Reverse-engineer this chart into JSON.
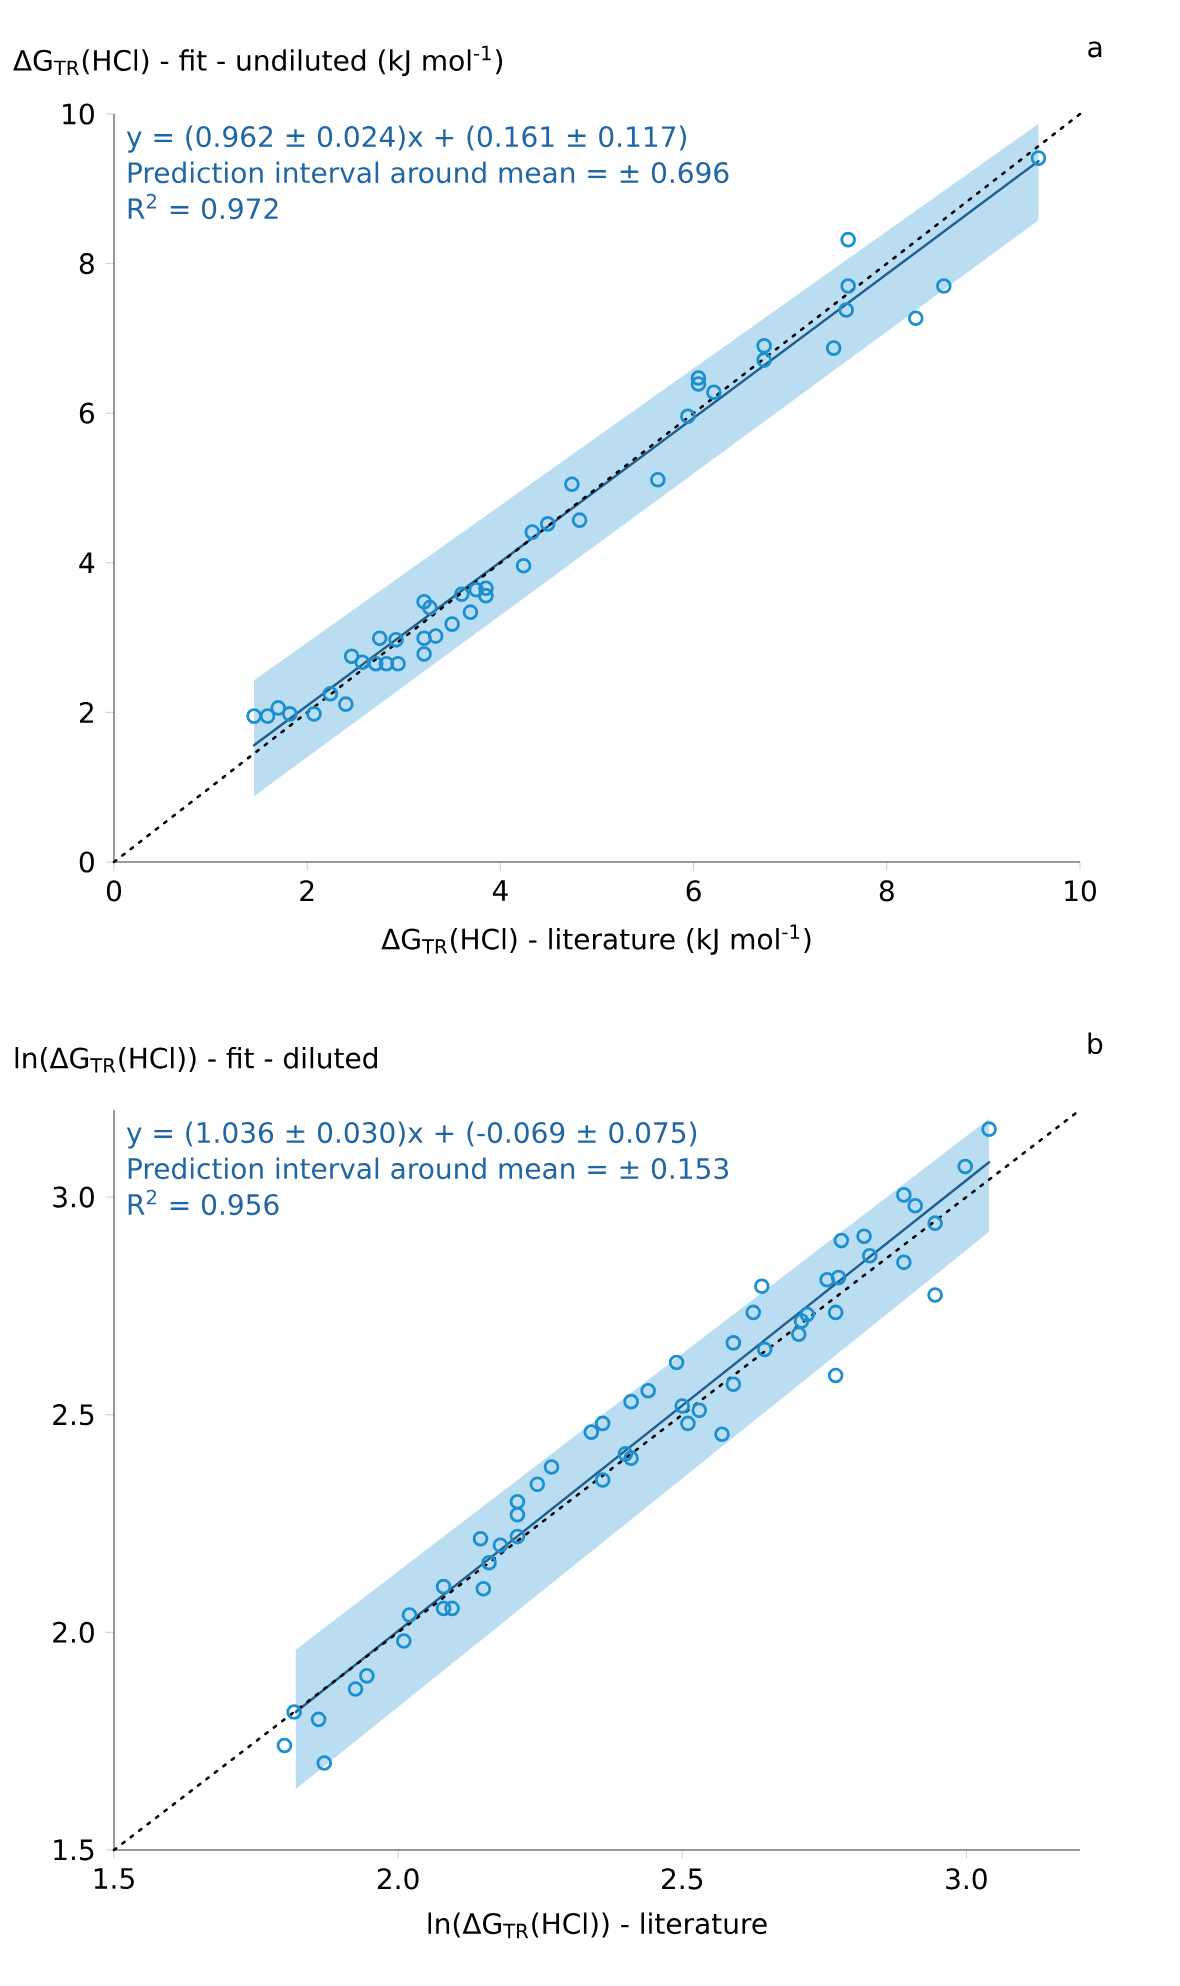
{
  "chart_data": [
    {
      "type": "scatter",
      "ylabel": "ΔG$_{TR}$(HCl) - fit - undiluted (kJ mol$^{-1}$)",
      "xlabel": "ΔG$_{TR}$(HCl) - literature (kJ mol$^{-1}$)",
      "xlim": [
        0,
        10
      ],
      "ylim": [
        0,
        10
      ],
      "xticks": [
        0,
        2,
        4,
        6,
        8,
        10
      ],
      "yticks": [
        0,
        2,
        4,
        6,
        8,
        10
      ],
      "annotations": [
        "y = (0.962 ± 0.024)x + (0.161 ± 0.117)",
        "Prediction interval around mean = ± 0.696",
        "R$^{2}$ = 0.972",
        "a"
      ],
      "series": [
        {
          "marker": "circle",
          "color": "#1b8fcf",
          "x": [
            1.45,
            1.59,
            1.7,
            1.82,
            2.07,
            2.24,
            2.4,
            2.46,
            2.57,
            2.71,
            2.75,
            2.82,
            2.94,
            2.92,
            3.21,
            3.27,
            3.21,
            3.21,
            3.33,
            3.5,
            3.6,
            3.69,
            3.75,
            3.85,
            3.85,
            4.24,
            4.33,
            4.49,
            4.74,
            4.82,
            5.63,
            5.94,
            6.05,
            6.05,
            6.21,
            6.73,
            6.73,
            7.6,
            7.45,
            7.58,
            7.6,
            8.3,
            8.59,
            9.57
          ],
          "values": [
            1.95,
            1.95,
            2.06,
            1.98,
            1.98,
            2.25,
            2.11,
            2.75,
            2.67,
            2.65,
            2.99,
            2.65,
            2.65,
            2.97,
            3.48,
            3.4,
            2.99,
            2.78,
            3.02,
            3.18,
            3.58,
            3.34,
            3.64,
            3.66,
            3.56,
            3.96,
            4.41,
            4.52,
            5.05,
            4.57,
            5.11,
            5.96,
            6.47,
            6.39,
            6.28,
            6.9,
            6.71,
            8.32,
            6.87,
            7.38,
            7.7,
            7.27,
            7.7,
            9.41
          ]
        },
        {
          "type": "line",
          "color": "#1f5f8f",
          "x": [
            1.45,
            9.57
          ],
          "values": [
            1.56,
            9.37
          ],
          "lower": [
            0.88,
            8.58
          ],
          "upper": [
            2.43,
            9.87
          ]
        },
        {
          "type": "line",
          "color": "#000000",
          "line_style": "dotted",
          "x": [
            0,
            10
          ],
          "values": [
            0,
            10
          ]
        }
      ]
    },
    {
      "type": "scatter",
      "ylabel": "ln(ΔG$_{TR}$(HCl)) - fit - diluted",
      "xlabel": "ln(ΔG$_{TR}$(HCl)) - literature",
      "xlim": [
        1.5,
        3.2
      ],
      "ylim": [
        1.5,
        3.2
      ],
      "xticks": [
        1.5,
        {
          "value": 2,
          "label": "2.0"
        },
        2.5,
        {
          "value": 3,
          "label": "3.0"
        }
      ],
      "yticks": [
        1.5,
        {
          "value": 2,
          "label": "2.0"
        },
        2.5,
        {
          "value": 3,
          "label": "3.0"
        }
      ],
      "annotations": [
        "y = (1.036 ± 0.030)x + (-0.069 ± 0.075)",
        "Prediction interval around mean = ± 0.153",
        "R$^{2}$ = 0.956",
        "b"
      ],
      "series": [
        {
          "marker": "circle",
          "color": "#1b8fcf",
          "x": [
            1.817,
            1.8,
            1.86,
            1.87,
            1.925,
            1.945,
            2.01,
            2.02,
            2.08,
            2.095,
            2.08,
            2.15,
            2.16,
            2.145,
            2.18,
            2.21,
            2.21,
            2.21,
            2.245,
            2.27,
            2.36,
            2.34,
            2.36,
            2.4,
            2.41,
            2.41,
            2.44,
            2.49,
            2.5,
            2.51,
            2.53,
            2.57,
            2.59,
            2.59,
            2.625,
            2.64,
            2.645,
            2.705,
            2.71,
            2.72,
            2.755,
            2.77,
            2.77,
            2.775,
            2.78,
            2.82,
            2.83,
            2.89,
            2.89,
            2.91,
            2.945,
            2.945,
            2.998,
            3.04
          ],
          "values": [
            1.817,
            1.74,
            1.8,
            1.7,
            1.87,
            1.9,
            1.98,
            2.04,
            2.055,
            2.055,
            2.105,
            2.1,
            2.16,
            2.215,
            2.2,
            2.22,
            2.27,
            2.3,
            2.34,
            2.38,
            2.35,
            2.46,
            2.48,
            2.41,
            2.4,
            2.53,
            2.555,
            2.62,
            2.52,
            2.48,
            2.51,
            2.455,
            2.665,
            2.57,
            2.735,
            2.795,
            2.65,
            2.685,
            2.715,
            2.73,
            2.81,
            2.59,
            2.735,
            2.815,
            2.9,
            2.91,
            2.865,
            2.85,
            3.005,
            2.98,
            2.94,
            2.775,
            3.07,
            3.156
          ]
        },
        {
          "type": "line",
          "color": "#1f5f8f",
          "x": [
            1.82,
            3.04
          ],
          "values": [
            1.817,
            3.08
          ],
          "lower": [
            1.64,
            2.92
          ],
          "upper": [
            1.96,
            3.18
          ]
        },
        {
          "type": "line",
          "color": "#000000",
          "line_style": "dotted",
          "x": [
            1.5,
            3.2
          ],
          "values": [
            1.5,
            3.2
          ]
        }
      ]
    }
  ]
}
